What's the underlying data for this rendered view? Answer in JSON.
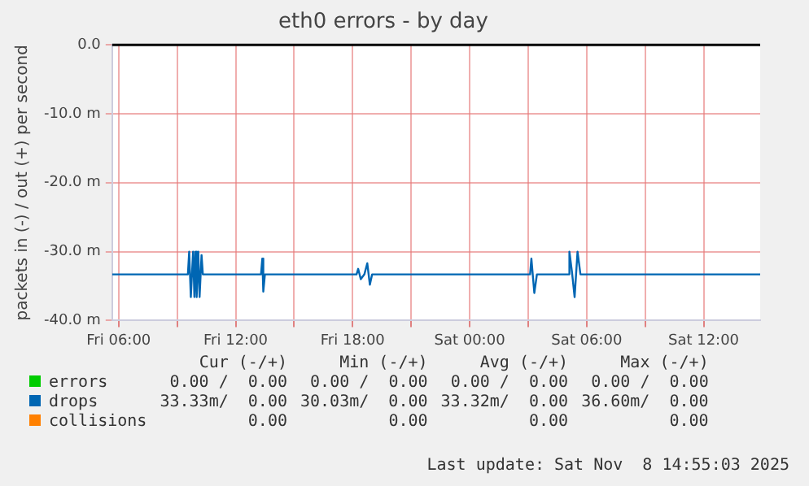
{
  "chart_data": {
    "type": "line",
    "title": "eth0 errors - by day",
    "ylabel": "packets in (-) / out (+) per second",
    "x": [
      "2025-11-07T05:40",
      "2025-11-07T09:33",
      "2025-11-07T09:37",
      "2025-11-07T09:42",
      "2025-11-07T09:49",
      "2025-11-07T09:53",
      "2025-11-07T09:56",
      "2025-11-07T10:00",
      "2025-11-07T10:05",
      "2025-11-07T10:09",
      "2025-11-07T10:15",
      "2025-11-07T10:19",
      "2025-11-07T13:18",
      "2025-11-07T13:22",
      "2025-11-07T13:25",
      "2025-11-07T13:30",
      "2025-11-07T18:12",
      "2025-11-07T18:17",
      "2025-11-07T18:25",
      "2025-11-07T18:36",
      "2025-11-07T18:45",
      "2025-11-07T18:53",
      "2025-11-07T19:00",
      "2025-11-08T03:06",
      "2025-11-08T03:10",
      "2025-11-08T03:19",
      "2025-11-08T03:27",
      "2025-11-08T05:03",
      "2025-11-08T05:07",
      "2025-11-08T05:15",
      "2025-11-08T05:23",
      "2025-11-08T05:32",
      "2025-11-08T05:41",
      "2025-11-08T14:54"
    ],
    "series": [
      {
        "name": "errors",
        "color": "#00cc00",
        "values": [
          null,
          null,
          null,
          null,
          null,
          null,
          null,
          null,
          null,
          null,
          null,
          null,
          null,
          null,
          null,
          null,
          null,
          null,
          null,
          null,
          null,
          null,
          null,
          null,
          null,
          null,
          null,
          null,
          null,
          null,
          null,
          null,
          null,
          null
        ]
      },
      {
        "name": "drops",
        "color": "#0066b3",
        "values": [
          -33.3,
          -33.3,
          -30,
          -36.6,
          -30,
          -36.6,
          -30,
          -36.6,
          -30,
          -36.6,
          -30.5,
          -33.3,
          -33.3,
          -31,
          -35.8,
          -33.3,
          -33.3,
          -32.5,
          -34,
          -33.3,
          -31.7,
          -34.8,
          -33.3,
          -33.3,
          -31,
          -36,
          -33.3,
          -33.3,
          -30,
          -33,
          -36.6,
          -30,
          -33.3,
          -33.3
        ]
      },
      {
        "name": "collisions",
        "color": "#ff8000",
        "values": [
          null,
          null,
          null,
          null,
          null,
          null,
          null,
          null,
          null,
          null,
          null,
          null,
          null,
          null,
          null,
          null,
          null,
          null,
          null,
          null,
          null,
          null,
          null,
          null,
          null,
          null,
          null,
          null,
          null,
          null,
          null,
          null,
          null,
          null
        ]
      }
    ],
    "ref_lines": [
      {
        "axis": "y",
        "value": 0,
        "color": "#000000"
      }
    ],
    "xlim": [
      "2025-11-07T05:40",
      "2025-11-08T14:54"
    ],
    "xticks": [
      {
        "value": "2025-11-07T06:00",
        "label": "Fri 06:00"
      },
      {
        "value": "2025-11-07T09:00",
        "label": null
      },
      {
        "value": "2025-11-07T12:00",
        "label": "Fri 12:00"
      },
      {
        "value": "2025-11-07T15:00",
        "label": null
      },
      {
        "value": "2025-11-07T18:00",
        "label": "Fri 18:00"
      },
      {
        "value": "2025-11-07T21:00",
        "label": null
      },
      {
        "value": "2025-11-08T00:00",
        "label": "Sat 00:00"
      },
      {
        "value": "2025-11-08T03:00",
        "label": null
      },
      {
        "value": "2025-11-08T06:00",
        "label": "Sat 06:00"
      },
      {
        "value": "2025-11-08T09:00",
        "label": null
      },
      {
        "value": "2025-11-08T12:00",
        "label": "Sat 12:00"
      }
    ],
    "ylim": [
      -40,
      0
    ],
    "yticks": [
      {
        "value": -40,
        "label": "-40.0 m"
      },
      {
        "value": -30,
        "label": "-30.0 m"
      },
      {
        "value": -20,
        "label": "-20.0 m"
      },
      {
        "value": -10,
        "label": "-10.0 m"
      },
      {
        "value": 0,
        "label": "0.0"
      }
    ],
    "grid": true,
    "legend": "bottom",
    "marker": "none",
    "line_style": "solid",
    "annotations": [
      "Cur (-/+)",
      "Min (-/+)",
      "Avg (-/+)",
      "Max (-/+)",
      "0.00 /  0.00",
      "0.00 /  0.00",
      "0.00 /  0.00",
      "0.00 /  0.00",
      "33.33m/  0.00",
      "30.03m/  0.00",
      "33.32m/  0.00",
      "36.60m/  0.00",
      "0.00",
      "0.00",
      "0.00",
      "0.00",
      "Last update: Sat Nov  8 14:55:03 2025"
    ]
  }
}
